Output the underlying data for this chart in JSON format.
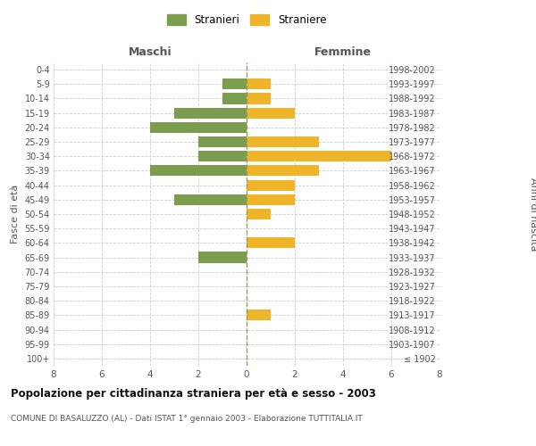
{
  "age_groups": [
    "100+",
    "95-99",
    "90-94",
    "85-89",
    "80-84",
    "75-79",
    "70-74",
    "65-69",
    "60-64",
    "55-59",
    "50-54",
    "45-49",
    "40-44",
    "35-39",
    "30-34",
    "25-29",
    "20-24",
    "15-19",
    "10-14",
    "5-9",
    "0-4"
  ],
  "birth_years": [
    "≤ 1902",
    "1903-1907",
    "1908-1912",
    "1913-1917",
    "1918-1922",
    "1923-1927",
    "1928-1932",
    "1933-1937",
    "1938-1942",
    "1943-1947",
    "1948-1952",
    "1953-1957",
    "1958-1962",
    "1963-1967",
    "1968-1972",
    "1973-1977",
    "1978-1982",
    "1983-1987",
    "1988-1992",
    "1993-1997",
    "1998-2002"
  ],
  "maschi": [
    0,
    0,
    0,
    0,
    0,
    0,
    0,
    2,
    0,
    0,
    0,
    3,
    0,
    4,
    2,
    2,
    4,
    3,
    1,
    1,
    0
  ],
  "femmine": [
    0,
    0,
    0,
    1,
    0,
    0,
    0,
    0,
    2,
    0,
    1,
    2,
    2,
    3,
    6,
    3,
    0,
    2,
    1,
    1,
    0
  ],
  "maschi_color": "#7a9e4e",
  "femmine_color": "#f0b429",
  "title": "Popolazione per cittadinanza straniera per età e sesso - 2003",
  "subtitle": "COMUNE DI BASALUZZO (AL) - Dati ISTAT 1° gennaio 2003 - Elaborazione TUTTITALIA.IT",
  "xlabel_left": "Maschi",
  "xlabel_right": "Femmine",
  "ylabel_left": "Fasce di età",
  "ylabel_right": "Anni di nascita",
  "legend_stranieri": "Stranieri",
  "legend_straniere": "Straniere",
  "xlim": 8,
  "bar_height": 0.75,
  "background_color": "#ffffff",
  "grid_color": "#cccccc"
}
